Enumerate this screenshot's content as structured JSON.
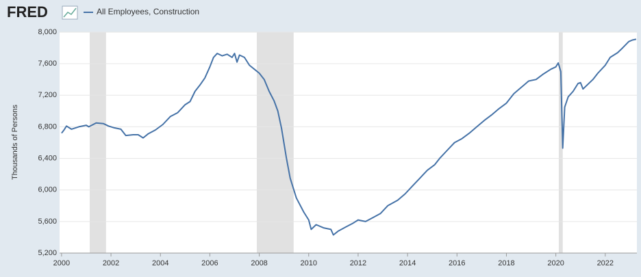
{
  "chart_data": {
    "type": "line",
    "logo": "FRED",
    "ylabel": "Thousands of Persons",
    "xlim": [
      1999.92,
      2023.28
    ],
    "xticks": [
      2000,
      2002,
      2004,
      2006,
      2008,
      2010,
      2012,
      2014,
      2016,
      2018,
      2020,
      2022
    ],
    "ylim": [
      5200,
      8000
    ],
    "yticks": [
      {
        "value": 5200,
        "label": "5,200"
      },
      {
        "value": 5600,
        "label": "5,600"
      },
      {
        "value": 6000,
        "label": "6,000"
      },
      {
        "value": 6400,
        "label": "6,400"
      },
      {
        "value": 6800,
        "label": "6,800"
      },
      {
        "value": 7200,
        "label": "7,200"
      },
      {
        "value": 7600,
        "label": "7,600"
      },
      {
        "value": 8000,
        "label": "8,000"
      }
    ],
    "grid": true,
    "recessions": [
      [
        2001.14,
        2001.8
      ],
      [
        2007.9,
        2009.39
      ],
      [
        2020.12,
        2020.28
      ]
    ],
    "recession_color": "#e1e1e1",
    "x": [
      2000.0,
      2000.1,
      2000.2,
      2000.4,
      2000.7,
      2001.0,
      2001.1,
      2001.4,
      2001.7,
      2001.9,
      2002.1,
      2002.4,
      2002.6,
      2002.9,
      2003.1,
      2003.3,
      2003.5,
      2003.8,
      2004.1,
      2004.4,
      2004.7,
      2005.0,
      2005.2,
      2005.4,
      2005.6,
      2005.8,
      2006.0,
      2006.15,
      2006.3,
      2006.5,
      2006.7,
      2006.9,
      2007.0,
      2007.1,
      2007.2,
      2007.4,
      2007.6,
      2007.8,
      2008.0,
      2008.2,
      2008.4,
      2008.6,
      2008.75,
      2008.9,
      2009.1,
      2009.25,
      2009.5,
      2009.8,
      2010.0,
      2010.1,
      2010.3,
      2010.6,
      2010.9,
      2011.0,
      2011.2,
      2011.5,
      2011.8,
      2012.0,
      2012.3,
      2012.6,
      2012.9,
      2013.2,
      2013.6,
      2013.9,
      2014.2,
      2014.5,
      2014.8,
      2015.1,
      2015.3,
      2015.6,
      2015.9,
      2016.2,
      2016.5,
      2016.8,
      2017.1,
      2017.4,
      2017.7,
      2018.0,
      2018.3,
      2018.6,
      2018.9,
      2019.2,
      2019.5,
      2019.8,
      2020.0,
      2020.1,
      2020.2,
      2020.28,
      2020.36,
      2020.5,
      2020.7,
      2020.9,
      2021.0,
      2021.1,
      2021.5,
      2021.7,
      2022.0,
      2022.2,
      2022.5,
      2022.7,
      2022.95,
      2023.1,
      2023.25
    ],
    "series": [
      {
        "name": "All Employees, Construction",
        "color": "#4572a7",
        "values": [
          6720,
          6760,
          6810,
          6770,
          6800,
          6820,
          6800,
          6850,
          6840,
          6810,
          6790,
          6770,
          6690,
          6700,
          6700,
          6660,
          6710,
          6760,
          6830,
          6930,
          6980,
          7080,
          7120,
          7250,
          7330,
          7420,
          7560,
          7680,
          7730,
          7700,
          7720,
          7680,
          7730,
          7620,
          7710,
          7680,
          7580,
          7530,
          7480,
          7400,
          7250,
          7130,
          7000,
          6780,
          6400,
          6150,
          5900,
          5720,
          5620,
          5500,
          5560,
          5520,
          5500,
          5430,
          5480,
          5530,
          5580,
          5620,
          5600,
          5650,
          5700,
          5800,
          5870,
          5950,
          6050,
          6150,
          6250,
          6320,
          6400,
          6500,
          6600,
          6650,
          6720,
          6800,
          6880,
          6950,
          7030,
          7100,
          7220,
          7300,
          7380,
          7400,
          7470,
          7530,
          7560,
          7610,
          7500,
          6530,
          7050,
          7180,
          7250,
          7350,
          7360,
          7280,
          7400,
          7480,
          7580,
          7680,
          7740,
          7800,
          7880,
          7900,
          7910
        ]
      }
    ]
  }
}
